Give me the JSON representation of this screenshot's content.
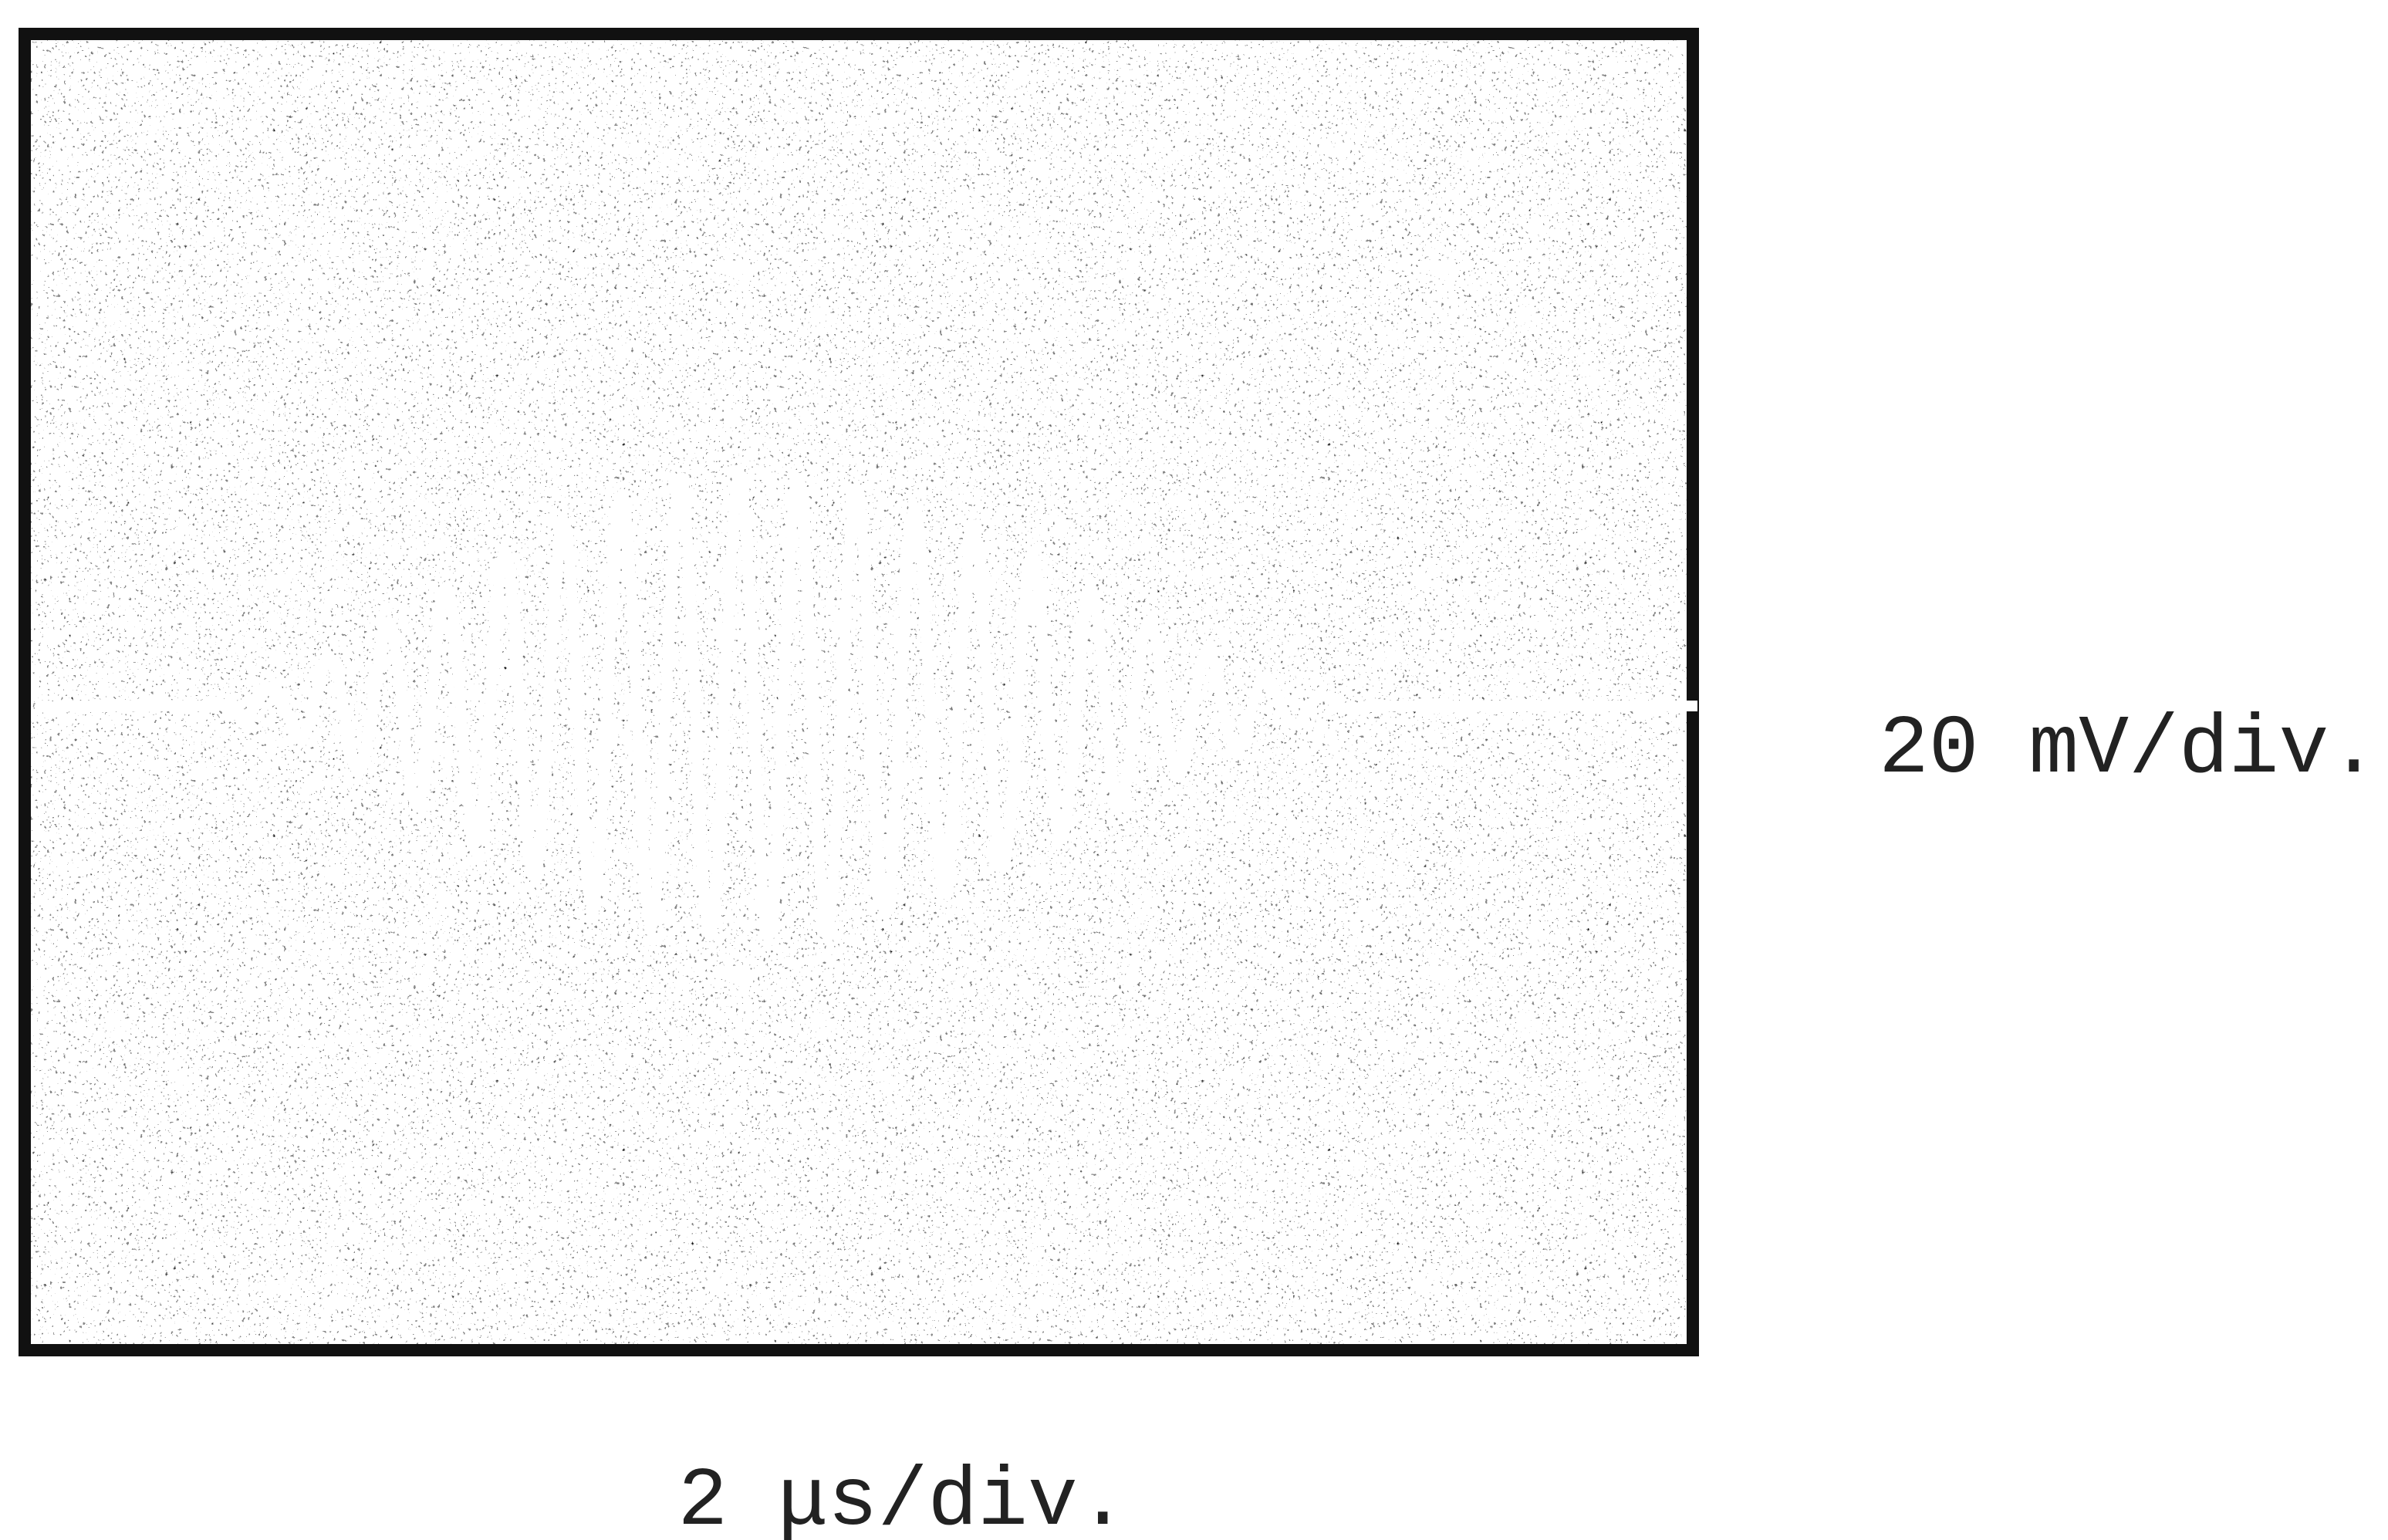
{
  "labels": {
    "vertical_scale": "20 mV/div.",
    "horizontal_scale": "2 μs/div."
  }
}
